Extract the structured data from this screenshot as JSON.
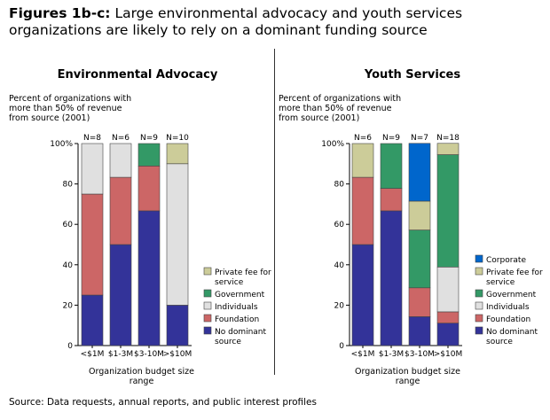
{
  "title": {
    "prefix": "Figures 1b-c:",
    "text": "Large environmental advocacy and youth services organizations are likely to rely on a dominant funding source"
  },
  "source": "Source: Data requests, annual reports, and public interest profiles",
  "colors": {
    "No dominant source": "#333399",
    "Foundation": "#cc6666",
    "Individuals": "#e0e0e0",
    "Government": "#339966",
    "Private fee for service": "#cccc99",
    "Corporate": "#0066cc"
  },
  "chart_data": [
    {
      "type": "bar",
      "stacked": true,
      "title": "Environmental Advocacy",
      "ylabel": "Percent of organizations with more than 50% of revenue from source (2001)",
      "xlabel": "Organization budget size range",
      "ylim": [
        0,
        100
      ],
      "yticks": [
        "0",
        "20",
        "40",
        "60",
        "80",
        "100%"
      ],
      "categories": [
        "<$1M",
        "$1-3M",
        "$3-10M",
        ">$10M"
      ],
      "n_labels": [
        "N=8",
        "N=6",
        "N=9",
        "N=10"
      ],
      "series": [
        {
          "name": "No dominant source",
          "values": [
            25,
            50,
            66.7,
            20
          ]
        },
        {
          "name": "Foundation",
          "values": [
            50,
            33.3,
            22.2,
            0
          ]
        },
        {
          "name": "Individuals",
          "values": [
            25,
            16.7,
            0,
            70
          ]
        },
        {
          "name": "Government",
          "values": [
            0,
            0,
            11.1,
            0
          ]
        },
        {
          "name": "Private fee for service",
          "values": [
            0,
            0,
            0,
            10
          ]
        }
      ],
      "legend": [
        "Private fee for service",
        "Government",
        "Individuals",
        "Foundation",
        "No dominant source"
      ]
    },
    {
      "type": "bar",
      "stacked": true,
      "title": "Youth Services",
      "ylabel": "Percent of organizations with more than 50% of revenue from source (2001)",
      "xlabel": "Organization budget size range",
      "ylim": [
        0,
        100
      ],
      "yticks": [
        "0",
        "20",
        "40",
        "60",
        "80",
        "100%"
      ],
      "categories": [
        "<$1M",
        "$1-3M",
        "$3-10M",
        ">$10M"
      ],
      "n_labels": [
        "N=6",
        "N=9",
        "N=7",
        "N=18"
      ],
      "series": [
        {
          "name": "No dominant source",
          "values": [
            50,
            66.7,
            14.3,
            11.1
          ]
        },
        {
          "name": "Foundation",
          "values": [
            33.3,
            11.1,
            14.3,
            5.6
          ]
        },
        {
          "name": "Individuals",
          "values": [
            0,
            0,
            0,
            22.2
          ]
        },
        {
          "name": "Government",
          "values": [
            0,
            22.2,
            28.6,
            55.6
          ]
        },
        {
          "name": "Private fee for service",
          "values": [
            16.7,
            0,
            14.3,
            5.6
          ]
        },
        {
          "name": "Corporate",
          "values": [
            0,
            0,
            28.6,
            0
          ]
        }
      ],
      "legend": [
        "Corporate",
        "Private fee for service",
        "Government",
        "Individuals",
        "Foundation",
        "No dominant source"
      ]
    }
  ]
}
